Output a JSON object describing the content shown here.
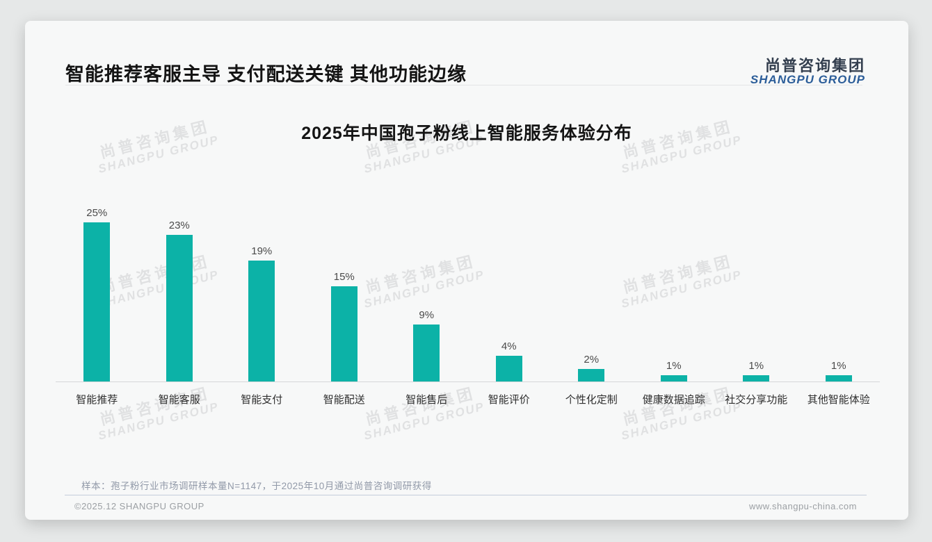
{
  "page": {
    "title": "智能推荐客服主导 支付配送关键 其他功能边缘"
  },
  "brand": {
    "logo_cn": "尚普咨询集团",
    "logo_en": "SHANGPU GROUP"
  },
  "watermark": {
    "line1": "尚普咨询集团",
    "line2": "SHANGPU GROUP"
  },
  "chart_data": {
    "type": "bar",
    "title": "2025年中国孢子粉线上智能服务体验分布",
    "categories": [
      "智能推荐",
      "智能客服",
      "智能支付",
      "智能配送",
      "智能售后",
      "智能评价",
      "个性化定制",
      "健康数据追踪",
      "社交分享功能",
      "其他智能体验"
    ],
    "values": [
      25,
      23,
      19,
      15,
      9,
      4,
      2,
      1,
      1,
      1
    ],
    "unit": "%",
    "value_labels": true,
    "bar_color": "#0cb2a7",
    "xlabel": "",
    "ylabel": "",
    "ylim": [
      0,
      27
    ],
    "grid": false,
    "legend": "none"
  },
  "note": {
    "sample_text": "样本：孢子粉行业市场调研样本量N=1147，于2025年10月通过尚普咨询调研获得"
  },
  "footer": {
    "copyright": "©2025.12 SHANGPU GROUP",
    "website": "www.shangpu-china.com"
  },
  "colors": {
    "bar": "#0cb2a7",
    "logo_blue": "#2b5d99",
    "card_bg": "#f7f8f8",
    "page_bg": "#e6e8e8"
  }
}
